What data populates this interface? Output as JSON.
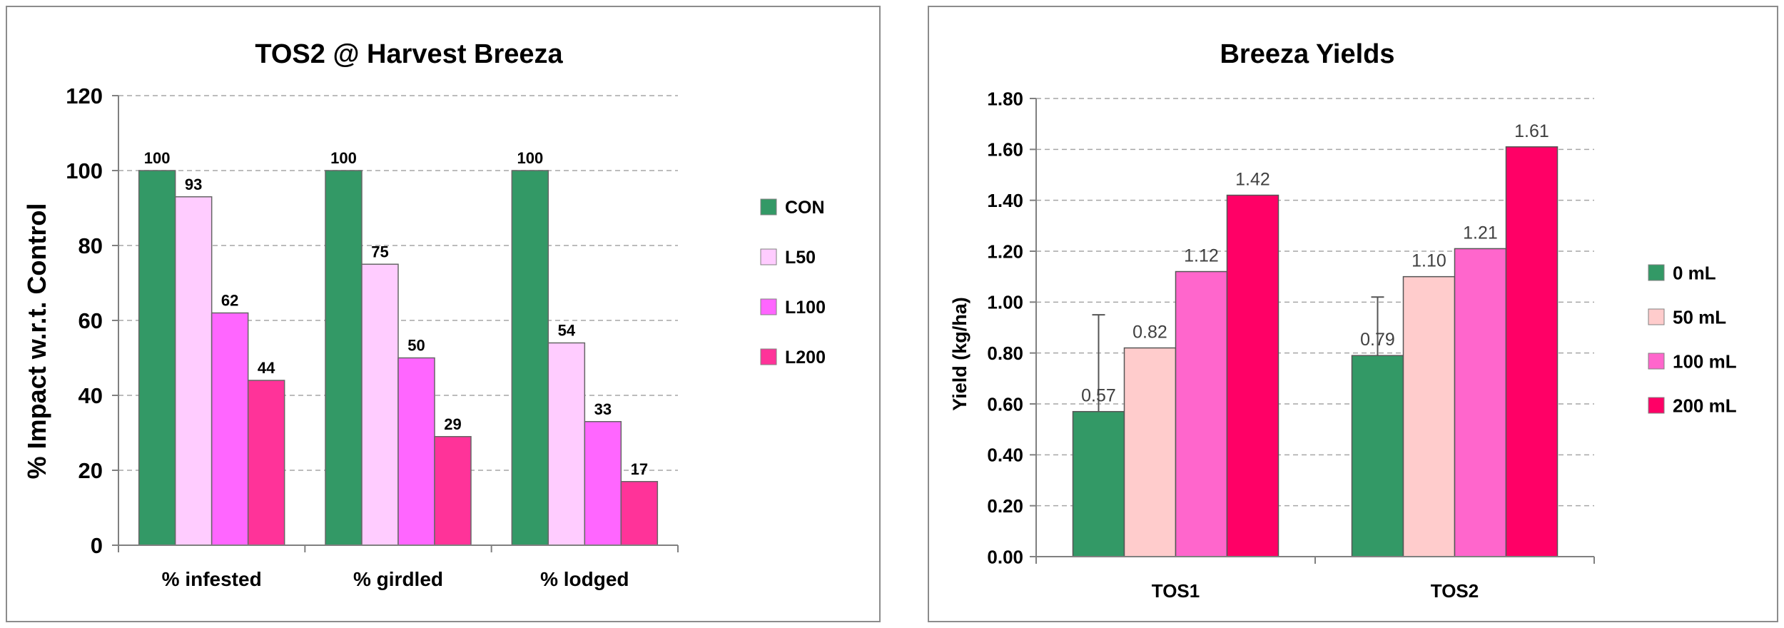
{
  "chart_data": [
    {
      "type": "bar",
      "title": "TOS2 @ Harvest Breeza",
      "xlabel": "",
      "ylabel": "% Impact w.r.t. Control",
      "ylim": [
        0,
        120
      ],
      "yticks": [
        "0",
        "20",
        "40",
        "60",
        "80",
        "100",
        "120"
      ],
      "categories": [
        "% infested",
        "% girdled",
        "% lodged"
      ],
      "series": [
        {
          "name": "CON",
          "values": [
            100,
            100,
            100
          ],
          "labels": [
            "100",
            "100",
            "100"
          ],
          "color": "#339966"
        },
        {
          "name": "L50",
          "values": [
            93,
            75,
            54
          ],
          "labels": [
            "93",
            "75",
            "54"
          ],
          "color": "#ffccff"
        },
        {
          "name": "L100",
          "values": [
            62,
            50,
            33
          ],
          "labels": [
            "62",
            "50",
            "33"
          ],
          "color": "#ff66ff"
        },
        {
          "name": "L200",
          "values": [
            44,
            29,
            17
          ],
          "labels": [
            "44",
            "29",
            "17"
          ],
          "color": "#ff3399"
        }
      ],
      "grid": true,
      "legend": "right"
    },
    {
      "type": "bar",
      "title": "Breeza Yields",
      "xlabel": "",
      "ylabel": "Yield (kg/ha)",
      "ylim": [
        0,
        1.8
      ],
      "yticks": [
        "0.00",
        "0.20",
        "0.40",
        "0.60",
        "0.80",
        "1.00",
        "1.20",
        "1.40",
        "1.60",
        "1.80"
      ],
      "categories": [
        "TOS1",
        "TOS2"
      ],
      "series": [
        {
          "name": "0 mL",
          "values": [
            0.57,
            0.79
          ],
          "labels": [
            "0.57",
            "0.79"
          ],
          "error_upper": [
            0.95,
            1.02
          ],
          "color": "#339966"
        },
        {
          "name": "50 mL",
          "values": [
            0.82,
            1.1
          ],
          "labels": [
            "0.82",
            "1.10"
          ],
          "color": "#ffcccc"
        },
        {
          "name": "100 mL",
          "values": [
            1.12,
            1.21
          ],
          "labels": [
            "1.12",
            "1.21"
          ],
          "color": "#ff66cc"
        },
        {
          "name": "200 mL",
          "values": [
            1.42,
            1.61
          ],
          "labels": [
            "1.42",
            "1.61"
          ],
          "color": "#ff0066"
        }
      ],
      "grid": true,
      "legend": "right"
    }
  ]
}
